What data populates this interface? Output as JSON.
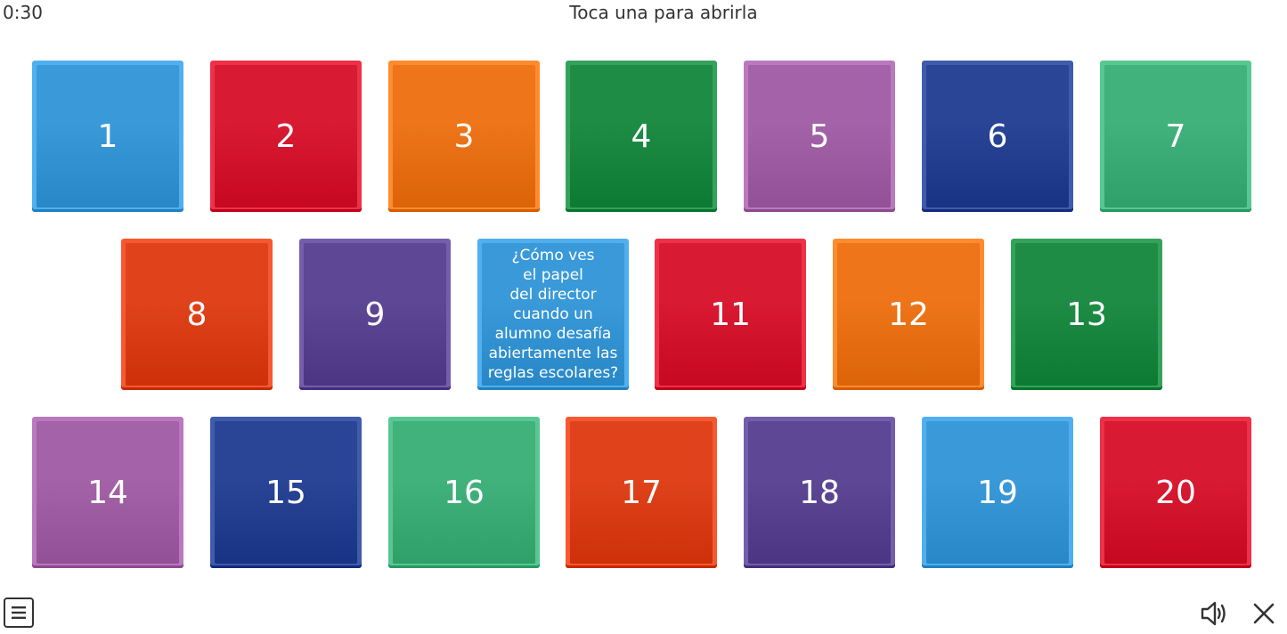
{
  "header": {
    "timer": "0:30",
    "instruction": "Toca una para abrirla"
  },
  "tiles": [
    {
      "label": "1",
      "color": "#3a9ad9"
    },
    {
      "label": "2",
      "color": "#d91a33"
    },
    {
      "label": "3",
      "color": "#ee7519"
    },
    {
      "label": "4",
      "color": "#1f8c46"
    },
    {
      "label": "5",
      "color": "#a463a8"
    },
    {
      "label": "6",
      "color": "#2a4596"
    },
    {
      "label": "7",
      "color": "#42b27c"
    },
    {
      "label": "8",
      "color": "#e0431b"
    },
    {
      "label": "9",
      "color": "#5e4896"
    },
    {
      "label": "¿Cómo ves\nel papel\ndel director\ncuando un\nalumno desafía\nabiertamente las\nreglas escolares?",
      "color": "#3a9ad9",
      "opened": true
    },
    {
      "label": "11",
      "color": "#d91a33"
    },
    {
      "label": "12",
      "color": "#ee7519"
    },
    {
      "label": "13",
      "color": "#1f8c46"
    },
    {
      "label": "14",
      "color": "#a463a8"
    },
    {
      "label": "15",
      "color": "#2a4596"
    },
    {
      "label": "16",
      "color": "#42b27c"
    },
    {
      "label": "17",
      "color": "#e0431b"
    },
    {
      "label": "18",
      "color": "#5e4896"
    },
    {
      "label": "19",
      "color": "#3a9ad9"
    },
    {
      "label": "20",
      "color": "#d91a33"
    }
  ],
  "footer": {
    "menu_icon": "menu-icon",
    "sound_icon": "speaker-icon",
    "close_icon": "close-icon"
  }
}
